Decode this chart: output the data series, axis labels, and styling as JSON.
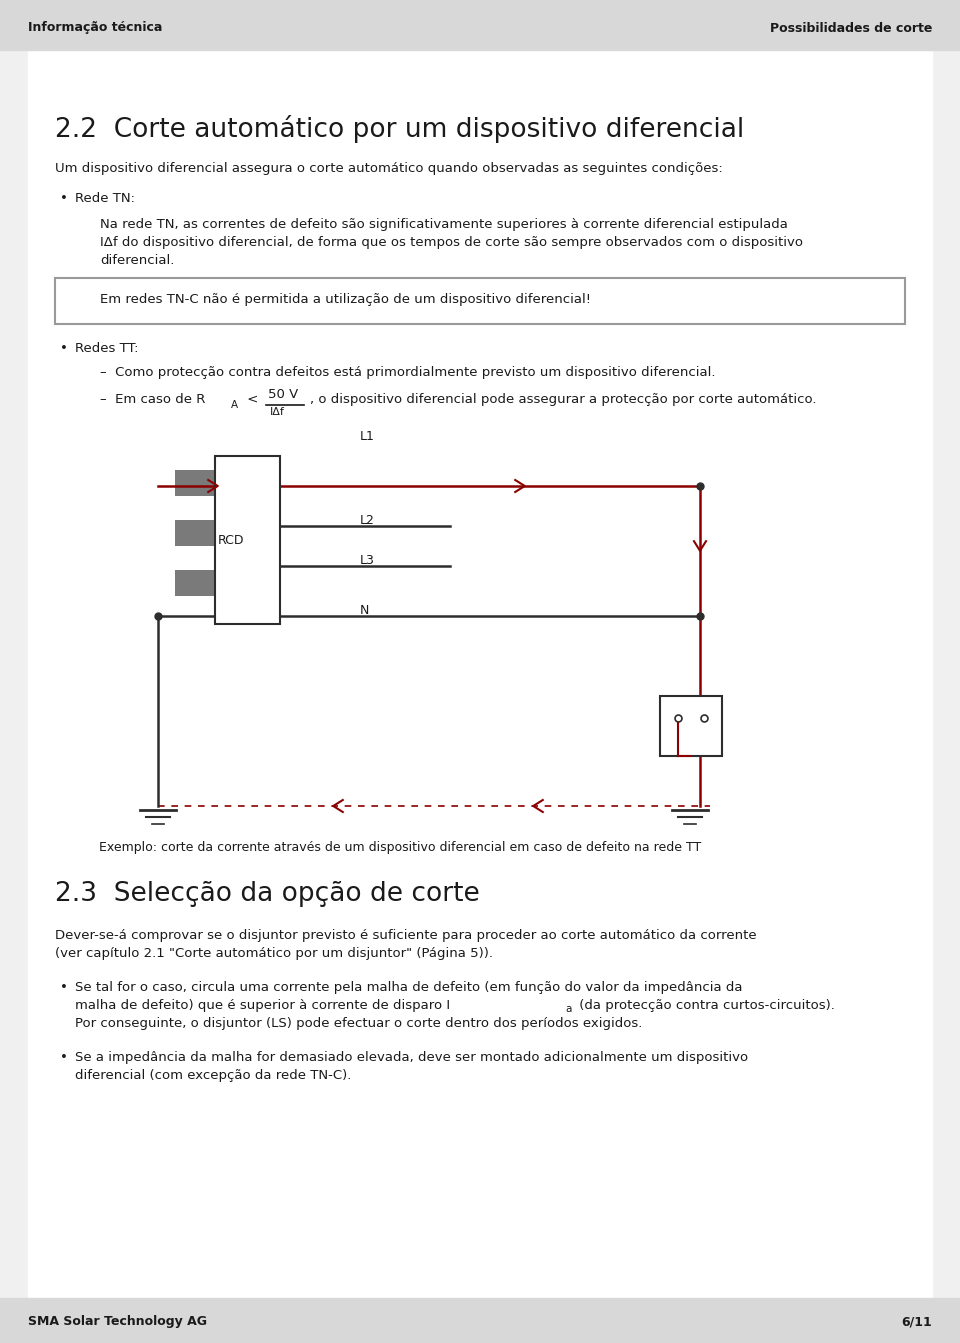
{
  "bg_color": "#ffffff",
  "page_bg": "#f0f0f0",
  "content_bg": "#ffffff",
  "header_bg": "#d8d8d8",
  "footer_bg": "#d8d8d8",
  "header_left": "Informação técnica",
  "header_right": "Possibilidades de corte",
  "footer_left": "SMA Solar Technology AG",
  "footer_right": "6/11",
  "title": "2.2  Corte automático por um dispositivo diferencial",
  "para1": "Um dispositivo diferencial assegura o corte automático quando observadas as seguintes condições:",
  "bullet1_label": "•  Rede TN:",
  "bullet1_text_line1": "Na rede TN, as correntes de defeito são significativamente superiores à corrente diferencial estipulada",
  "bullet1_text_line2": "IΔf do dispositivo diferencial, de forma que os tempos de corte são sempre observados com o dispositivo",
  "bullet1_text_line3": "diferencial.",
  "box_text": "Em redes TN-C não é permitida a utilização de um dispositivo diferencial!",
  "bullet2_label": "•  Redes TT:",
  "sub_bullet1": "–  Como protecção contra defeitos está primordialmente previsto um dispositivo diferencial.",
  "sub_bullet2_post": ", o dispositivo diferencial pode assegurar a protecção por corte automático.",
  "diagram_caption": "Exemplo: corte da corrente através de um dispositivo diferencial em caso de defeito na rede TT",
  "section2_title": "2.3  Selecção da opção de corte",
  "section2_line1": "Dever-se-á comprovar se o disjuntor previsto é suficiente para proceder ao corte automático da corrente",
  "section2_line2": "(ver capítulo 2.1 \"Corte automático por um disjuntor\" (Página 5)).",
  "bullet3_line1": "Se tal for o caso, circula uma corrente pela malha de defeito (em função do valor da impedância da",
  "bullet3_line2": "malha de defeito) que é superior à corrente de disparo I",
  "bullet3_line2b": "a",
  "bullet3_line2c": " (da protecção contra curtos-circuitos).",
  "bullet3_line3": "Por conseguinte, o disjuntor (LS) pode efectuar o corte dentro dos períodos exigidos.",
  "bullet4_line1": "Se a impedância da malha for demasiado elevada, deve ser montado adicionalmente um dispositivo",
  "bullet4_line2": "diferencial (com excepção da rede TN-C).",
  "dark_color": "#1a1a1a",
  "line_color_dark": "#2d2d2d",
  "red_color": "#8b0000",
  "gray_color": "#7a7a7a",
  "box_border": "#999999"
}
